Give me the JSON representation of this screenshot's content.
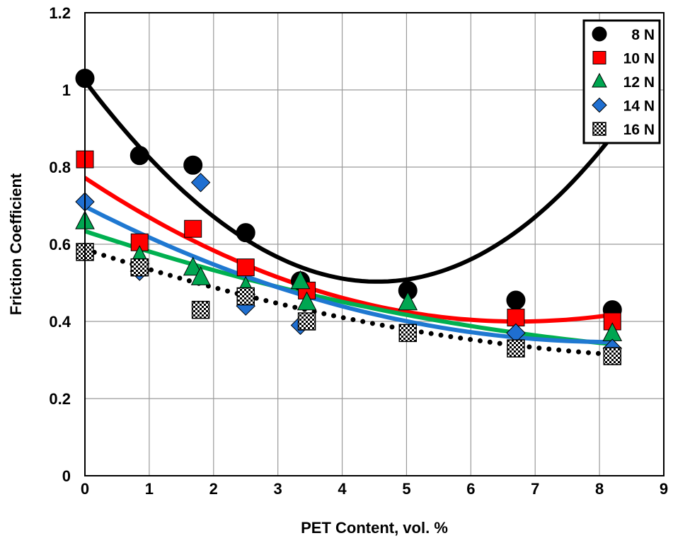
{
  "chart_data": {
    "type": "scatter",
    "title": "",
    "xlabel": "PET Content, vol. %",
    "ylabel": "Friction Coefficient",
    "xlim": [
      0,
      9
    ],
    "ylim": [
      0,
      1.2
    ],
    "xticks": [
      "0",
      "1",
      "2",
      "3",
      "4",
      "5",
      "6",
      "7",
      "8",
      "9"
    ],
    "yticks": [
      "0",
      "0.2",
      "0.4",
      "0.6",
      "0.8",
      "1",
      "1.2"
    ],
    "grid": true,
    "legend_position": "top-right",
    "series": [
      {
        "name": "8 N",
        "marker": "circle",
        "color": "#000000",
        "trend_color": "#000000",
        "trend_style": "solid",
        "x": [
          0,
          0.85,
          1.68,
          2.5,
          3.35,
          5.02,
          6.7,
          8.2
        ],
        "y": [
          1.03,
          0.83,
          0.805,
          0.63,
          0.505,
          0.48,
          0.455,
          0.43
        ],
        "trend": [
          1.023,
          -0.2203,
          0.02148,
          0.0004
        ]
      },
      {
        "name": "10 N",
        "marker": "square",
        "color": "#ff0000",
        "trend_color": "#ff0000",
        "trend_style": "solid",
        "x": [
          0,
          0.85,
          1.68,
          2.5,
          3.45,
          6.7,
          8.2
        ],
        "y": [
          0.82,
          0.605,
          0.64,
          0.54,
          0.48,
          0.41,
          0.4
        ],
        "trend": [
          0.772,
          -0.1105,
          0.0082,
          0
        ]
      },
      {
        "name": "12 N",
        "marker": "triangle",
        "color": "#00a651",
        "trend_color": "#00b050",
        "trend_style": "solid",
        "x": [
          0,
          0.85,
          1.68,
          1.8,
          2.5,
          3.35,
          3.45,
          5.02,
          8.2
        ],
        "y": [
          0.66,
          0.57,
          0.54,
          0.515,
          0.49,
          0.505,
          0.45,
          0.45,
          0.37
        ],
        "trend": [
          0.634,
          -0.0554,
          0.0024,
          0
        ]
      },
      {
        "name": "14 N",
        "marker": "diamond",
        "color": "#1f6fd1",
        "trend_color": "#1f78d1",
        "trend_style": "solid",
        "x": [
          0,
          0.85,
          1.8,
          2.5,
          3.35,
          6.7,
          8.2
        ],
        "y": [
          0.71,
          0.53,
          0.76,
          0.44,
          0.39,
          0.37,
          0.33
        ],
        "trend": [
          0.698,
          -0.0855,
          0.0052,
          0
        ]
      },
      {
        "name": "16 N",
        "marker": "checker",
        "color": "#000000",
        "trend_color": "#000000",
        "trend_style": "dotted",
        "x": [
          0,
          0.85,
          1.8,
          2.5,
          3.45,
          5.02,
          6.7,
          8.2
        ],
        "y": [
          0.58,
          0.54,
          0.43,
          0.465,
          0.4,
          0.37,
          0.33,
          0.31
        ],
        "trend": [
          0.587,
          -0.0546,
          0.0026,
          0
        ]
      }
    ]
  }
}
